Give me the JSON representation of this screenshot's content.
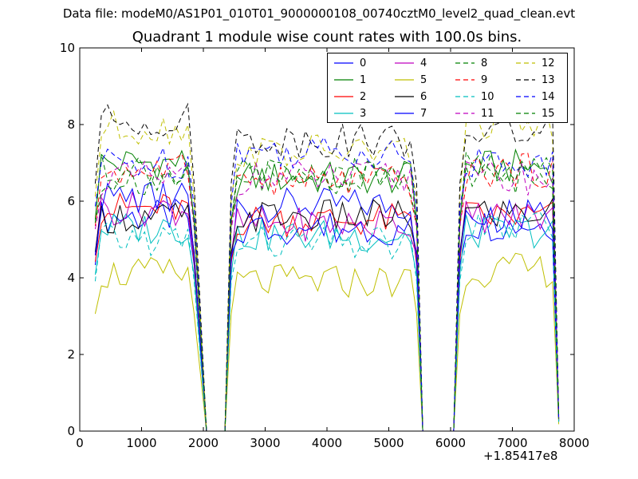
{
  "figure": {
    "suptitle": "Data file: modeM0/AS1P01_010T01_9000000108_00740cztM0_level2_quad_clean.evt",
    "x_offset_label": "+1.85417e8"
  },
  "chart_data": {
    "type": "line",
    "title": "Quadrant 1 module wise count rates with 100.0s bins.",
    "xlabel": "",
    "ylabel": "",
    "xlim": [
      0,
      8000
    ],
    "ylim": [
      0,
      10
    ],
    "x_ticks": [
      "0",
      "1000",
      "2000",
      "3000",
      "4000",
      "5000",
      "6000",
      "7000",
      "8000"
    ],
    "y_ticks": [
      "0",
      "2",
      "4",
      "6",
      "8",
      "10"
    ],
    "grid": false,
    "legend_position": "top-right",
    "segments": [
      {
        "start": 250,
        "step": 100,
        "count": 17
      },
      {
        "start": 2050,
        "step": 100,
        "count": 4
      },
      {
        "start": 2450,
        "step": 100,
        "count": 31
      },
      {
        "start": 5550,
        "step": 100,
        "count": 6
      },
      {
        "start": 6150,
        "step": 100,
        "count": 17
      }
    ],
    "gap_value": 0,
    "series": [
      {
        "name": "0",
        "color": "#0000ff",
        "dash": "solid",
        "levels": [
          5.6,
          5.9,
          5.4
        ],
        "edge": 5.1
      },
      {
        "name": "1",
        "color": "#008000",
        "dash": "solid",
        "levels": [
          7.0,
          6.6,
          6.9
        ],
        "edge": 6.5
      },
      {
        "name": "2",
        "color": "#ff0000",
        "dash": "solid",
        "levels": [
          5.8,
          5.5,
          5.6
        ],
        "edge": 5.2
      },
      {
        "name": "3",
        "color": "#00bfbf",
        "dash": "solid",
        "levels": [
          5.3,
          5.1,
          5.2
        ],
        "edge": 4.8
      },
      {
        "name": "4",
        "color": "#bf00bf",
        "dash": "solid",
        "levels": [
          5.8,
          5.4,
          5.6
        ],
        "edge": 5.4
      },
      {
        "name": "5",
        "color": "#bfbf00",
        "dash": "solid",
        "levels": [
          4.1,
          3.9,
          4.2
        ],
        "edge": 3.6
      },
      {
        "name": "6",
        "color": "#000000",
        "dash": "solid",
        "levels": [
          5.6,
          5.6,
          5.7
        ],
        "edge": 5.5
      },
      {
        "name": "7",
        "color": "#0000ff",
        "dash": "solid",
        "levels": [
          6.1,
          5.3,
          5.6
        ],
        "edge": 5.4
      },
      {
        "name": "8",
        "color": "#008000",
        "dash": "dashed",
        "levels": [
          6.8,
          6.7,
          6.6
        ],
        "edge": 6.4
      },
      {
        "name": "9",
        "color": "#ff0000",
        "dash": "dashed",
        "levels": [
          6.8,
          6.5,
          6.8
        ],
        "edge": 6.3
      },
      {
        "name": "10",
        "color": "#00bfbf",
        "dash": "dashed",
        "levels": [
          5.0,
          4.9,
          5.3
        ],
        "edge": 4.6
      },
      {
        "name": "11",
        "color": "#bf00bf",
        "dash": "dashed",
        "levels": [
          6.6,
          6.6,
          6.6
        ],
        "edge": 6.2
      },
      {
        "name": "12",
        "color": "#bfbf00",
        "dash": "dashed",
        "levels": [
          7.9,
          7.3,
          8.0
        ],
        "edge": 7.2
      },
      {
        "name": "13",
        "color": "#000000",
        "dash": "dashed",
        "levels": [
          8.1,
          7.6,
          7.8
        ],
        "edge": 7.6
      },
      {
        "name": "14",
        "color": "#0000ff",
        "dash": "dashed",
        "levels": [
          7.0,
          7.3,
          7.0
        ],
        "edge": 6.9
      },
      {
        "name": "15",
        "color": "#008000",
        "dash": "dashed",
        "levels": [
          6.6,
          6.6,
          6.9
        ],
        "edge": 6.4
      }
    ]
  }
}
